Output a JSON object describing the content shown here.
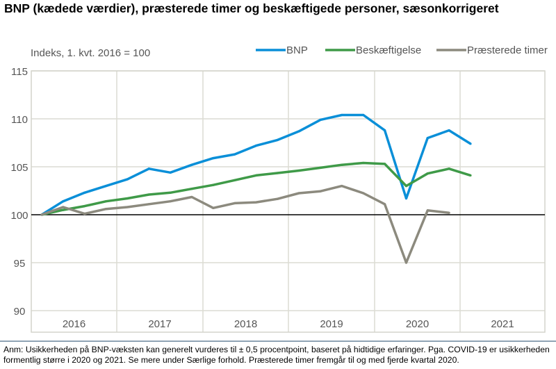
{
  "title": "BNP (kædede værdier), præsterede timer og beskæftigede personer, sæsonkorrigeret",
  "note": "Anm: Usikkerheden på BNP-væksten kan generelt vurderes til ± 0,5 procentpoint, baseret på hidtidige erfaringer. Pga. COVID-19 er usikkerheden formentlig større i 2020 og 2021. Se mere under Særlige forhold. Præsterede timer fremgår til og med fjerde kvartal 2020.",
  "chart_data": {
    "type": "line",
    "ylabel": "Indeks, 1. kvt. 2016  = 100",
    "ylim": [
      90,
      115
    ],
    "yticks": [
      "90",
      "95",
      "100",
      "105",
      "110",
      "115"
    ],
    "xtick_labels": [
      "2016",
      "2017",
      "2018",
      "2019",
      "2020",
      "2021"
    ],
    "x_frequency": "quarterly, from 1. kvt. 2016",
    "grid": true,
    "reference_line": 100,
    "legend_position": "top-right",
    "series": [
      {
        "name": "BNP",
        "color": "#0a8fd8",
        "values": [
          100,
          101.4,
          102.3,
          103.0,
          103.7,
          104.8,
          104.4,
          105.2,
          105.9,
          106.3,
          107.2,
          107.8,
          108.7,
          109.9,
          110.4,
          110.4,
          108.8,
          101.7,
          108.0,
          108.8,
          107.4
        ]
      },
      {
        "name": "Beskæftigelse",
        "color": "#3f9a48",
        "values": [
          100,
          100.5,
          100.9,
          101.4,
          101.7,
          102.1,
          102.3,
          102.7,
          103.1,
          103.6,
          104.1,
          104.35,
          104.6,
          104.9,
          105.2,
          105.4,
          105.3,
          103.0,
          104.3,
          104.8,
          104.1
        ]
      },
      {
        "name": "Præsterede timer",
        "color": "#8c8a7e",
        "values": [
          100,
          100.8,
          100.1,
          100.6,
          100.8,
          101.1,
          101.4,
          101.85,
          100.7,
          101.2,
          101.3,
          101.65,
          102.25,
          102.45,
          103.0,
          102.25,
          101.1,
          95.0,
          100.45,
          100.2
        ]
      }
    ]
  }
}
